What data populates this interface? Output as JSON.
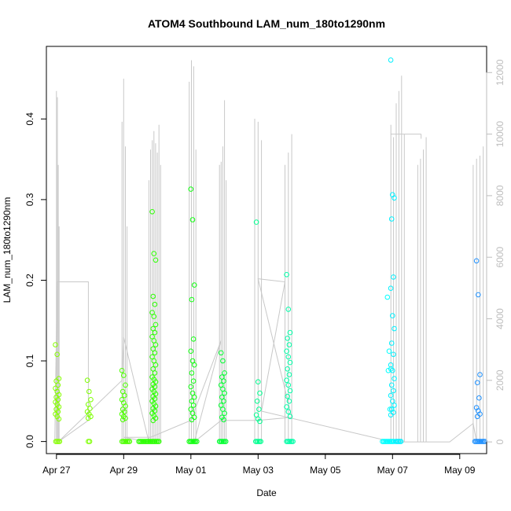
{
  "chart_data": {
    "type": "scatter",
    "title": "ATOM4 Southbound LAM_num_180to1290nm",
    "xlabel": "Date",
    "ylabel": "LAM_num_180to1290nm",
    "x_ticks": [
      {
        "day": 0,
        "label": "Apr 27"
      },
      {
        "day": 2,
        "label": "Apr 29"
      },
      {
        "day": 4,
        "label": "May 01"
      },
      {
        "day": 6,
        "label": "May 03"
      },
      {
        "day": 8,
        "label": "May 05"
      },
      {
        "day": 10,
        "label": "May 07"
      },
      {
        "day": 12,
        "label": "May 09"
      }
    ],
    "xlim_days": [
      -0.3,
      12.8
    ],
    "y_left": {
      "ticks": [
        0.0,
        0.1,
        0.2,
        0.3,
        0.4
      ],
      "labels": [
        "0.0",
        "0.1",
        "0.2",
        "0.3",
        "0.4"
      ],
      "lim": [
        -0.015,
        0.49
      ]
    },
    "y_right": {
      "ticks": [
        0,
        2000,
        4000,
        6000,
        8000,
        10000,
        12000
      ],
      "labels": [
        "0",
        "2000",
        "4000",
        "6000",
        "8000",
        "10000",
        "12000"
      ],
      "lim": [
        -380,
        12850
      ],
      "color": "#bdbdbd"
    },
    "grey_series_color": "#c8c8c8",
    "color_scale": [
      "#80ff00",
      "#00ff40",
      "#00ffff",
      "#0080ff"
    ],
    "point_bursts": [
      {
        "day": 0.02,
        "color": "#86ff00",
        "values": [
          0.12,
          0.108,
          0.078,
          0.075,
          0.07,
          0.066,
          0.062,
          0.058,
          0.055,
          0.052,
          0.049,
          0.046,
          0.043,
          0.04,
          0.037,
          0.034,
          0.031,
          0.028
        ]
      },
      {
        "day": 0.97,
        "color": "#7dff00",
        "values": [
          0.076,
          0.062,
          0.052,
          0.046,
          0.041,
          0.037,
          0.034,
          0.031,
          0.029
        ]
      },
      {
        "day": 2.0,
        "color": "#4dff00",
        "values": [
          0.088,
          0.082,
          0.07,
          0.062,
          0.057,
          0.052,
          0.048,
          0.044,
          0.04,
          0.037,
          0.034,
          0.031,
          0.029,
          0.027
        ]
      },
      {
        "day": 2.9,
        "color": "#2bff00",
        "values": [
          0.285,
          0.233,
          0.225,
          0.18,
          0.17,
          0.16,
          0.155,
          0.145,
          0.14,
          0.135,
          0.13,
          0.125,
          0.12,
          0.115,
          0.11,
          0.105,
          0.1,
          0.095,
          0.09,
          0.085,
          0.08,
          0.077,
          0.074,
          0.071,
          0.068,
          0.065,
          0.062,
          0.059,
          0.056,
          0.053,
          0.05,
          0.047,
          0.044,
          0.041,
          0.038,
          0.035,
          0.032,
          0.029,
          0.026
        ]
      },
      {
        "day": 4.05,
        "color": "#10ff10",
        "values": [
          0.313,
          0.275,
          0.194,
          0.176,
          0.127,
          0.112,
          0.1,
          0.095,
          0.085,
          0.075,
          0.068,
          0.06,
          0.055,
          0.05,
          0.045,
          0.04,
          0.035,
          0.03,
          0.027
        ]
      },
      {
        "day": 4.95,
        "color": "#00ff30",
        "values": [
          0.11,
          0.1,
          0.085,
          0.08,
          0.075,
          0.07,
          0.065,
          0.06,
          0.055,
          0.05,
          0.045,
          0.04,
          0.035,
          0.03,
          0.027
        ]
      },
      {
        "day": 6.0,
        "color": "#00ff90",
        "values": [
          0.272,
          0.074,
          0.06,
          0.05,
          0.04,
          0.033,
          0.028,
          0.025
        ]
      },
      {
        "day": 6.9,
        "color": "#00ffa8",
        "values": [
          0.207,
          0.164,
          0.135,
          0.128,
          0.12,
          0.112,
          0.105,
          0.098,
          0.09,
          0.083,
          0.076,
          0.07,
          0.063,
          0.056,
          0.05,
          0.043,
          0.037,
          0.031
        ]
      },
      {
        "day": 9.9,
        "color": "#00ffff",
        "values": [
          0.179,
          0.112,
          0.09,
          0.088,
          0.04
        ]
      },
      {
        "day": 10.0,
        "color": "#00f0ff",
        "values": [
          0.473,
          0.306,
          0.302,
          0.276,
          0.204,
          0.19,
          0.156,
          0.14,
          0.122,
          0.108,
          0.095,
          0.088,
          0.078,
          0.07,
          0.063,
          0.057,
          0.05,
          0.045,
          0.04,
          0.036,
          0.033
        ]
      },
      {
        "day": 12.55,
        "color": "#1e90ff",
        "values": [
          0.224,
          0.182,
          0.083,
          0.073,
          0.054,
          0.042,
          0.038,
          0.034,
          0.031
        ]
      }
    ],
    "zero_runs": [
      {
        "from": -0.02,
        "to": 0.12,
        "color": "#86ff00"
      },
      {
        "from": 0.95,
        "to": 1.02,
        "color": "#7dff00"
      },
      {
        "from": 1.95,
        "to": 2.2,
        "color": "#4dff00"
      },
      {
        "from": 2.45,
        "to": 3.05,
        "color": "#2bff00"
      },
      {
        "from": 3.95,
        "to": 4.2,
        "color": "#10ff10"
      },
      {
        "from": 4.85,
        "to": 5.05,
        "color": "#00ff30"
      },
      {
        "from": 5.93,
        "to": 6.1,
        "color": "#00ff90"
      },
      {
        "from": 6.85,
        "to": 7.05,
        "color": "#00ffa8"
      },
      {
        "from": 9.7,
        "to": 10.05,
        "color": "#00ffff"
      },
      {
        "from": 10.1,
        "to": 10.25,
        "color": "#00f0ff"
      },
      {
        "from": 12.45,
        "to": 12.75,
        "color": "#1e90ff"
      }
    ],
    "grey_spike_groups": [
      {
        "from": 0.0,
        "to": 0.08,
        "peaks": [
          11400,
          11200,
          9000,
          7000
        ]
      },
      {
        "from": 1.95,
        "to": 2.1,
        "peaks": [
          10400,
          11800,
          9600,
          7000
        ]
      },
      {
        "from": 2.75,
        "to": 3.1,
        "peaks": [
          8500,
          9500,
          9800,
          10100,
          9700,
          9400,
          10300,
          9000
        ]
      },
      {
        "from": 3.95,
        "to": 4.15,
        "peaks": [
          11700,
          12400,
          12200,
          9500
        ]
      },
      {
        "from": 4.85,
        "to": 5.05,
        "peaks": [
          9000,
          9100,
          9600,
          11100,
          8500
        ]
      },
      {
        "from": 5.9,
        "to": 6.1,
        "peaks": [
          10500,
          10400,
          9800
        ]
      },
      {
        "from": 6.8,
        "to": 7.0,
        "peaks": [
          9000,
          9400,
          10000
        ]
      },
      {
        "from": 9.95,
        "to": 10.35,
        "peaks": [
          10300,
          9900,
          11000,
          11400,
          11900,
          10000
        ]
      },
      {
        "from": 10.75,
        "to": 11.0,
        "peaks": [
          9000,
          9200,
          9500,
          9900
        ]
      },
      {
        "from": 12.4,
        "to": 12.7,
        "peaks": [
          9000,
          9200,
          9300,
          9600
        ]
      }
    ],
    "grey_connector_path": [
      [
        -0.05,
        0
      ],
      [
        0.02,
        5200
      ],
      [
        0.95,
        5200
      ],
      [
        0.95,
        700
      ],
      [
        0.05,
        0
      ],
      [
        1.95,
        2000
      ],
      [
        2.0,
        3400
      ],
      [
        2.75,
        0
      ],
      [
        2.0,
        150
      ],
      [
        2.8,
        150
      ],
      [
        4.0,
        700
      ],
      [
        4.9,
        3300
      ],
      [
        4.1,
        0
      ],
      [
        4.9,
        700
      ],
      [
        6.0,
        700
      ],
      [
        7.0,
        800
      ],
      [
        6.0,
        5300
      ],
      [
        6.8,
        5200
      ],
      [
        6.1,
        1000
      ],
      [
        10.0,
        0
      ],
      [
        11.7,
        0
      ],
      [
        12.4,
        600
      ],
      [
        12.5,
        0
      ]
    ],
    "grey_flat_segment": [
      [
        9.95,
        10000
      ],
      [
        10.85,
        10000
      ]
    ]
  }
}
